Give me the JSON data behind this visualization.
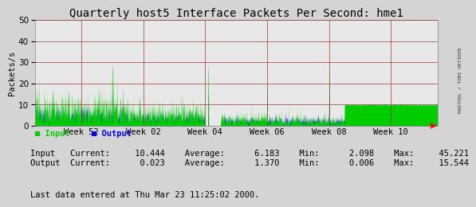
{
  "title": "Quarterly host5 Interface Packets Per Second: hme1",
  "ylabel": "Packets/s",
  "yticks": [
    0,
    10,
    20,
    30,
    40,
    50
  ],
  "ylim": [
    0,
    50
  ],
  "xtick_labels": [
    "Week 52",
    "Week 02",
    "Week 04",
    "Week 06",
    "Week 08",
    "Week 10"
  ],
  "bg_color": "#d4d4d4",
  "plot_bg_color": "#e8e8e8",
  "grid_color": "#993333",
  "input_color": "#00cc00",
  "output_color": "#0000ee",
  "legend_input_color": "#00cc00",
  "legend_output_color": "#0000ee",
  "right_label": "RRDTOOL / TOBI OETIKER",
  "line1": "Input   Current:     10.444    Average:      6.183    Min:      2.098    Max:     45.221",
  "line2": "Output  Current:      0.023    Average:      1.370    Min:      0.006    Max:     15.544",
  "footer_text": "Last data entered at Thu Mar 23 11:25:02 2000.",
  "title_fontsize": 10,
  "axis_fontsize": 7.5,
  "stats_fontsize": 7.5,
  "footer_fontsize": 7.5
}
